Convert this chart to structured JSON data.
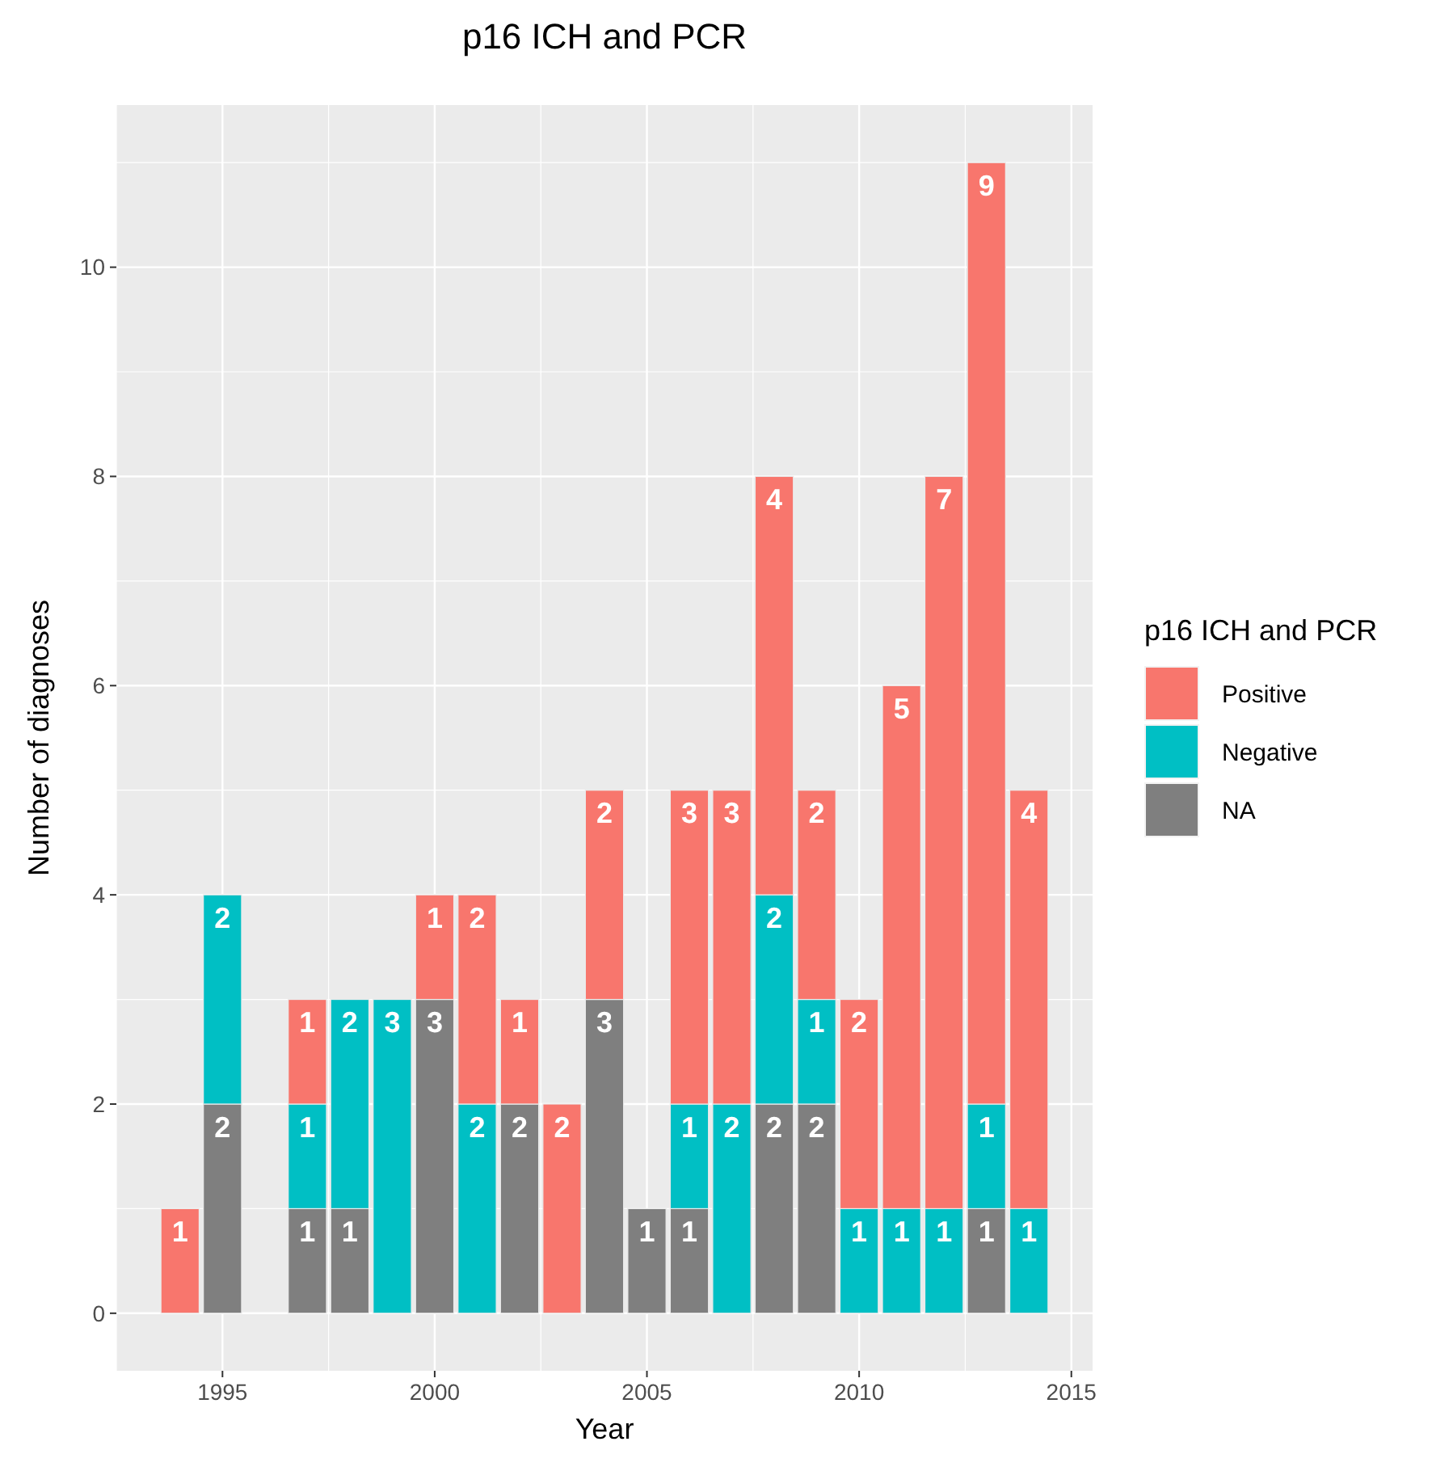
{
  "chart_data": {
    "type": "bar",
    "title": "p16 ICH and PCR",
    "xlabel": "Year",
    "ylabel": "Number of diagnoses",
    "legend_title": "p16 ICH and PCR",
    "stacked": true,
    "data_labels": true,
    "grid": true,
    "legend": "right",
    "x": [
      1994,
      1995,
      1997,
      1998,
      1999,
      2000,
      2001,
      2002,
      2003,
      2004,
      2005,
      2006,
      2007,
      2008,
      2009,
      2010,
      2011,
      2012,
      2013,
      2014
    ],
    "xlim": [
      1992.5,
      2015.5
    ],
    "xticks": [
      {
        "value": 1992.5,
        "label": null
      },
      1995,
      {
        "value": 1997.5,
        "label": null
      },
      2000,
      {
        "value": 2002.5,
        "label": null
      },
      2005,
      {
        "value": 2007.5,
        "label": null
      },
      2010,
      {
        "value": 2012.5,
        "label": null
      },
      2015
    ],
    "ylim": [
      -0.55,
      11.55
    ],
    "yticks": [
      0,
      {
        "value": 1,
        "label": null
      },
      2,
      {
        "value": 3,
        "label": null
      },
      4,
      {
        "value": 5,
        "label": null
      },
      6,
      {
        "value": 7,
        "label": null
      },
      8,
      {
        "value": 9,
        "label": null
      },
      10,
      {
        "value": 11,
        "label": null
      }
    ],
    "series": [
      {
        "name": "NA",
        "color": "#7f7f7f",
        "values": [
          null,
          2,
          1,
          1,
          null,
          3,
          null,
          2,
          null,
          3,
          1,
          1,
          null,
          2,
          2,
          null,
          null,
          null,
          1,
          null
        ]
      },
      {
        "name": "Negative",
        "color": "#00bfc4",
        "values": [
          null,
          2,
          1,
          2,
          3,
          null,
          2,
          null,
          null,
          null,
          null,
          1,
          2,
          2,
          1,
          1,
          1,
          1,
          1,
          1
        ]
      },
      {
        "name": "Positive",
        "color": "#f8766d",
        "values": [
          1,
          null,
          1,
          null,
          null,
          1,
          2,
          1,
          2,
          2,
          null,
          3,
          3,
          4,
          2,
          2,
          5,
          7,
          9,
          4
        ]
      }
    ]
  }
}
